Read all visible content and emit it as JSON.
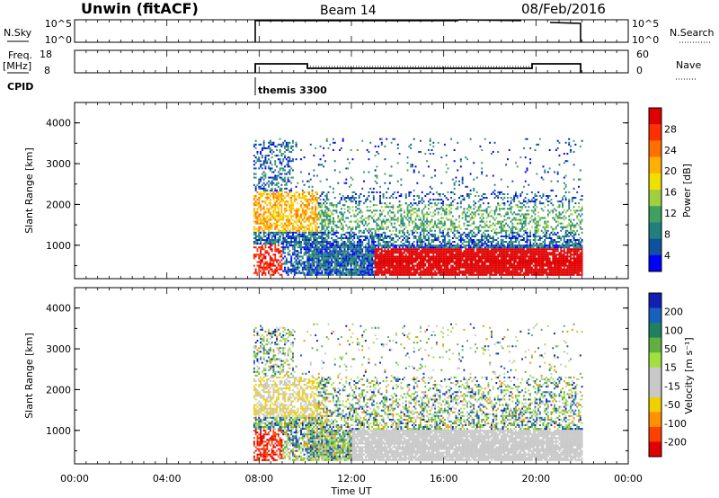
{
  "header": {
    "station": "Unwin (fitACF)",
    "beam": "Beam 14",
    "date": "08/Feb/2016"
  },
  "chart_data": [
    {
      "type": "line",
      "panel": "noise",
      "left_label": "N.Sky",
      "right_label": "N.Search",
      "yticks_left": [
        "10^5",
        "10^0"
      ],
      "yticks_right": [
        "10^5",
        "10^0"
      ]
    },
    {
      "type": "line",
      "panel": "frequency",
      "left_label_1": "Freq.",
      "left_label_2": "[MHz]",
      "right_label": "Nave",
      "yticks_left": [
        "18",
        "8"
      ],
      "yticks_right": [
        "60",
        "0"
      ]
    },
    {
      "type": "line",
      "panel": "cpid",
      "label": "CPID",
      "annotation": "themis 3300",
      "annotation_time": 7.75
    },
    {
      "type": "heatmap",
      "panel": "power",
      "ylabel": "Slant Range [km]",
      "ylim": [
        180,
        4500
      ],
      "yticks": [
        "1000",
        "2000",
        "3000",
        "4000"
      ],
      "colorbar_label": "Power [dB]",
      "colorbar_ticks": [
        "28",
        "24",
        "20",
        "16",
        "12",
        "8",
        "4"
      ],
      "colorbar_colors": [
        "#e00000",
        "#ff3000",
        "#ff7000",
        "#ffb000",
        "#f0e000",
        "#a0d040",
        "#40a060",
        "#208080",
        "#1050a0",
        "#0000ff"
      ]
    },
    {
      "type": "heatmap",
      "panel": "velocity",
      "ylabel": "Slant Range [km]",
      "ylim": [
        180,
        4500
      ],
      "yticks": [
        "1000",
        "2000",
        "3000",
        "4000"
      ],
      "colorbar_label": "Velocity [m s⁻¹]",
      "colorbar_ticks": [
        "200",
        "100",
        "50",
        "15",
        "-15",
        "-50",
        "-100",
        "-200"
      ],
      "colorbar_colors": [
        "#1020b0",
        "#1860c0",
        "#208060",
        "#60b040",
        "#a0e040",
        "#c8c8c8",
        "#c8c8c8",
        "#f0d000",
        "#ff9000",
        "#ff4000",
        "#e00000"
      ]
    }
  ],
  "xaxis": {
    "label": "Time UT",
    "range_hours": [
      0,
      24
    ],
    "ticks": [
      "00:00",
      "04:00",
      "08:00",
      "12:00",
      "16:00",
      "20:00",
      "00:00"
    ],
    "data_start_hour": 7.75,
    "data_end_hour": 22.0
  }
}
